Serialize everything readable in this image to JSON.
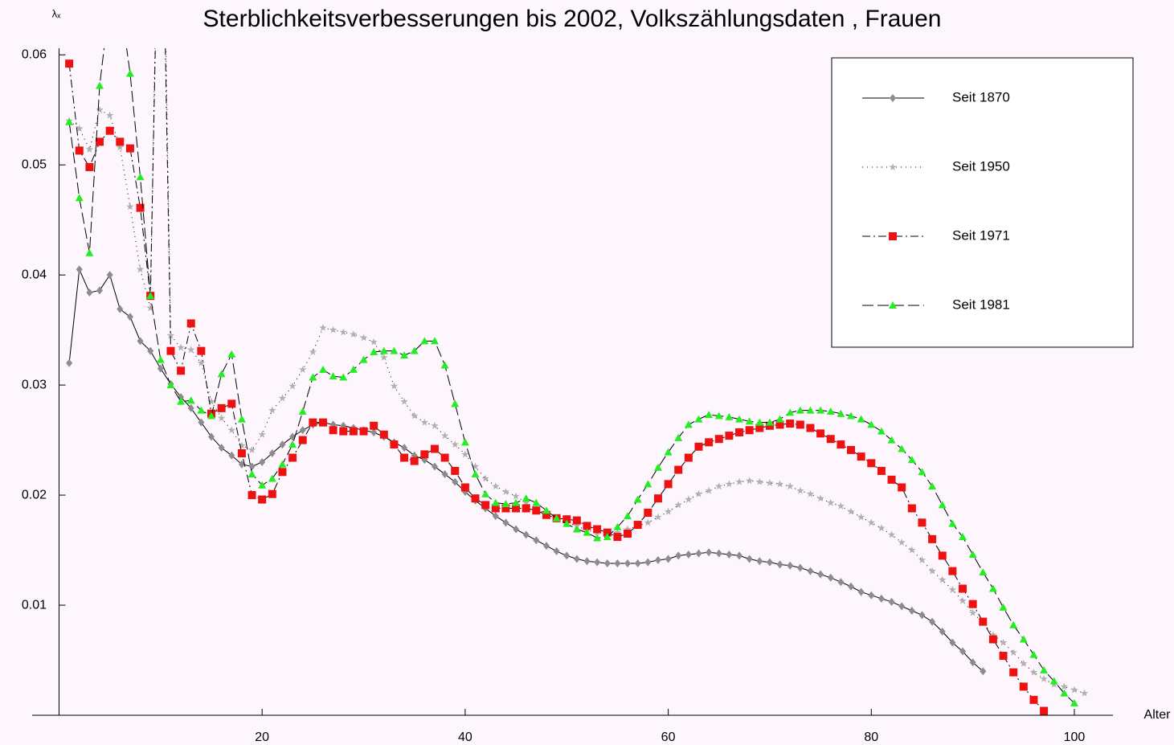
{
  "chart_data": {
    "type": "line",
    "title": "Sterblichkeitsverbesserungen   bis  2002, Volkszählungsdaten , Frauen",
    "y_label": "λₓ",
    "x_label": "Alter",
    "xlim": [
      -2.65,
      103.8
    ],
    "ylim": [
      0,
      0.0606
    ],
    "xticks": [
      20,
      40,
      60,
      80,
      100
    ],
    "yticks": [
      0.01,
      0.02,
      0.03,
      0.04,
      0.05,
      0.06
    ],
    "legend": "top-right",
    "series": [
      {
        "name": "Seit 1870",
        "color": "#8c8c8c",
        "marker": "diamond",
        "dash": "none",
        "x": [
          1,
          2,
          3,
          4,
          5,
          6,
          7,
          8,
          9,
          10,
          11,
          12,
          13,
          14,
          15,
          16,
          17,
          18,
          19,
          20,
          21,
          22,
          23,
          24,
          25,
          26,
          27,
          28,
          29,
          30,
          31,
          32,
          33,
          34,
          35,
          36,
          37,
          38,
          39,
          40,
          41,
          42,
          43,
          44,
          45,
          46,
          47,
          48,
          49,
          50,
          51,
          52,
          53,
          54,
          55,
          56,
          57,
          58,
          59,
          60,
          61,
          62,
          63,
          64,
          65,
          66,
          67,
          68,
          69,
          70,
          71,
          72,
          73,
          74,
          75,
          76,
          77,
          78,
          79,
          80,
          81,
          82,
          83,
          84,
          85,
          86,
          87,
          88,
          89,
          90,
          91
        ],
        "values": [
          0.032,
          0.0405,
          0.0384,
          0.0386,
          0.04,
          0.0369,
          0.0362,
          0.034,
          0.0331,
          0.0315,
          0.0301,
          0.0289,
          0.0279,
          0.0266,
          0.0253,
          0.0243,
          0.0236,
          0.0228,
          0.0226,
          0.023,
          0.0238,
          0.0246,
          0.0253,
          0.0259,
          0.0264,
          0.0266,
          0.0264,
          0.0263,
          0.0261,
          0.0259,
          0.0257,
          0.0253,
          0.0248,
          0.0243,
          0.0236,
          0.0232,
          0.0226,
          0.0219,
          0.0212,
          0.0203,
          0.0195,
          0.0188,
          0.0181,
          0.0175,
          0.0169,
          0.0164,
          0.0159,
          0.0154,
          0.0149,
          0.0145,
          0.0142,
          0.014,
          0.0139,
          0.0138,
          0.0138,
          0.0138,
          0.0138,
          0.0139,
          0.0141,
          0.0142,
          0.0145,
          0.0146,
          0.0147,
          0.0148,
          0.0147,
          0.0146,
          0.0145,
          0.0142,
          0.014,
          0.0139,
          0.0137,
          0.0136,
          0.0134,
          0.0131,
          0.0128,
          0.0125,
          0.0121,
          0.0117,
          0.0112,
          0.0109,
          0.0106,
          0.0103,
          0.0099,
          0.0095,
          0.0091,
          0.0085,
          0.0076,
          0.0066,
          0.0058,
          0.0048,
          0.004
        ]
      },
      {
        "name": "Seit 1950",
        "color": "#b0b0b0",
        "marker": "star",
        "dash": "1 5",
        "x": [
          1,
          2,
          3,
          4,
          5,
          6,
          7,
          8,
          9,
          10,
          11,
          12,
          13,
          14,
          15,
          16,
          17,
          18,
          19,
          20,
          21,
          22,
          23,
          24,
          25,
          26,
          27,
          28,
          29,
          30,
          31,
          32,
          33,
          34,
          35,
          36,
          37,
          38,
          39,
          40,
          41,
          42,
          43,
          44,
          45,
          46,
          47,
          48,
          49,
          50,
          51,
          52,
          53,
          54,
          55,
          56,
          57,
          58,
          59,
          60,
          61,
          62,
          63,
          64,
          65,
          66,
          67,
          68,
          69,
          70,
          71,
          72,
          73,
          74,
          75,
          76,
          77,
          78,
          79,
          80,
          81,
          82,
          83,
          84,
          85,
          86,
          87,
          88,
          89,
          90,
          91,
          92,
          93,
          94,
          95,
          96,
          97,
          98,
          99,
          100,
          101
        ],
        "values": [
          0.054,
          0.0533,
          0.0514,
          0.055,
          0.0545,
          0.0516,
          0.0462,
          0.0405,
          0.037,
          0.09,
          0.0345,
          0.0334,
          0.0332,
          0.032,
          0.0285,
          0.027,
          0.0259,
          0.0245,
          0.0241,
          0.0255,
          0.0277,
          0.0288,
          0.0299,
          0.0314,
          0.033,
          0.0352,
          0.035,
          0.0348,
          0.0346,
          0.0343,
          0.0339,
          0.0325,
          0.0299,
          0.0285,
          0.0272,
          0.0266,
          0.0263,
          0.0254,
          0.0246,
          0.0237,
          0.0226,
          0.0215,
          0.0208,
          0.0203,
          0.0199,
          0.0193,
          0.0188,
          0.0182,
          0.0179,
          0.0175,
          0.0172,
          0.0168,
          0.0166,
          0.0165,
          0.0166,
          0.0169,
          0.0172,
          0.0175,
          0.018,
          0.0185,
          0.0191,
          0.0196,
          0.0201,
          0.0204,
          0.0208,
          0.021,
          0.0212,
          0.0213,
          0.0212,
          0.0211,
          0.021,
          0.0208,
          0.0204,
          0.0201,
          0.0197,
          0.0193,
          0.019,
          0.0185,
          0.018,
          0.0175,
          0.017,
          0.0164,
          0.0157,
          0.015,
          0.0141,
          0.0131,
          0.0123,
          0.0114,
          0.0104,
          0.0093,
          0.0084,
          0.0073,
          0.0066,
          0.0057,
          0.0047,
          0.0039,
          0.0033,
          0.0028,
          0.0026,
          0.0023,
          0.002
        ]
      },
      {
        "name": "Seit 1971",
        "color": "#ee1111",
        "marker": "square",
        "dash": "10 4 2 4",
        "x": [
          1,
          2,
          3,
          4,
          5,
          6,
          7,
          8,
          9,
          10,
          11,
          12,
          13,
          14,
          15,
          16,
          17,
          18,
          19,
          20,
          21,
          22,
          23,
          24,
          25,
          26,
          27,
          28,
          29,
          30,
          31,
          32,
          33,
          34,
          35,
          36,
          37,
          38,
          39,
          40,
          41,
          42,
          43,
          44,
          45,
          46,
          47,
          48,
          49,
          50,
          51,
          52,
          53,
          54,
          55,
          56,
          57,
          58,
          59,
          60,
          61,
          62,
          63,
          64,
          65,
          66,
          67,
          68,
          69,
          70,
          71,
          72,
          73,
          74,
          75,
          76,
          77,
          78,
          79,
          80,
          81,
          82,
          83,
          84,
          85,
          86,
          87,
          88,
          89,
          90,
          91,
          92,
          93,
          94,
          95,
          96,
          97
        ],
        "values": [
          0.0592,
          0.0513,
          0.0498,
          0.0521,
          0.0531,
          0.0521,
          0.0515,
          0.0461,
          0.0381,
          0.085,
          0.0331,
          0.0313,
          0.0356,
          0.0331,
          0.0274,
          0.0279,
          0.0283,
          0.0238,
          0.02,
          0.0196,
          0.0201,
          0.0221,
          0.0234,
          0.025,
          0.0266,
          0.0266,
          0.0259,
          0.0258,
          0.0258,
          0.0258,
          0.0263,
          0.0255,
          0.0246,
          0.0234,
          0.0231,
          0.0237,
          0.0242,
          0.0234,
          0.0222,
          0.0207,
          0.0197,
          0.0191,
          0.0188,
          0.0188,
          0.0188,
          0.0188,
          0.0186,
          0.0182,
          0.0179,
          0.0178,
          0.0177,
          0.0172,
          0.0169,
          0.0166,
          0.0162,
          0.0165,
          0.0173,
          0.0184,
          0.0197,
          0.021,
          0.0223,
          0.0234,
          0.0244,
          0.0248,
          0.0251,
          0.0254,
          0.0257,
          0.0259,
          0.0261,
          0.0263,
          0.0264,
          0.0265,
          0.0264,
          0.0261,
          0.0256,
          0.0251,
          0.0246,
          0.0241,
          0.0235,
          0.0229,
          0.0222,
          0.0214,
          0.0207,
          0.0188,
          0.0175,
          0.016,
          0.0145,
          0.0131,
          0.0115,
          0.0101,
          0.0085,
          0.0069,
          0.0054,
          0.0039,
          0.0026,
          0.0014,
          0.0004
        ]
      },
      {
        "name": "Seit 1981",
        "color": "#22ee22",
        "marker": "triangle",
        "dash": "14 5",
        "x": [
          1,
          2,
          3,
          4,
          5,
          6,
          7,
          8,
          9,
          10,
          11,
          12,
          13,
          14,
          15,
          16,
          17,
          18,
          19,
          20,
          21,
          22,
          23,
          24,
          25,
          26,
          27,
          28,
          29,
          30,
          31,
          32,
          33,
          34,
          35,
          36,
          37,
          38,
          39,
          40,
          41,
          42,
          43,
          44,
          45,
          46,
          47,
          48,
          49,
          50,
          51,
          52,
          53,
          54,
          55,
          56,
          57,
          58,
          59,
          60,
          61,
          62,
          63,
          64,
          65,
          66,
          67,
          68,
          69,
          70,
          71,
          72,
          73,
          74,
          75,
          76,
          77,
          78,
          79,
          80,
          81,
          82,
          83,
          84,
          85,
          86,
          87,
          88,
          89,
          90,
          91,
          92,
          93,
          94,
          95,
          96,
          97,
          98,
          99,
          100
        ],
        "values": [
          0.0539,
          0.047,
          0.042,
          0.0572,
          0.065,
          0.065,
          0.0583,
          0.0489,
          0.0381,
          0.0323,
          0.03,
          0.0285,
          0.0286,
          0.0277,
          0.0272,
          0.031,
          0.0328,
          0.0269,
          0.0219,
          0.0209,
          0.0215,
          0.0228,
          0.0246,
          0.0276,
          0.0307,
          0.0314,
          0.0308,
          0.0307,
          0.0314,
          0.0323,
          0.033,
          0.0331,
          0.0331,
          0.0327,
          0.0331,
          0.034,
          0.034,
          0.0318,
          0.0283,
          0.0248,
          0.0219,
          0.0201,
          0.0193,
          0.0192,
          0.0193,
          0.0197,
          0.0193,
          0.0186,
          0.0179,
          0.0174,
          0.0169,
          0.0166,
          0.0161,
          0.0162,
          0.0171,
          0.0181,
          0.0196,
          0.021,
          0.0225,
          0.0239,
          0.0252,
          0.0264,
          0.0269,
          0.0273,
          0.0272,
          0.0271,
          0.0269,
          0.0267,
          0.0266,
          0.0266,
          0.0269,
          0.0275,
          0.0277,
          0.0277,
          0.0277,
          0.0276,
          0.0274,
          0.0272,
          0.0269,
          0.0264,
          0.0258,
          0.025,
          0.0242,
          0.0232,
          0.0221,
          0.0208,
          0.0191,
          0.0174,
          0.0162,
          0.0146,
          0.013,
          0.0115,
          0.0098,
          0.0082,
          0.0069,
          0.0055,
          0.0041,
          0.0031,
          0.002,
          0.0011
        ]
      }
    ]
  }
}
